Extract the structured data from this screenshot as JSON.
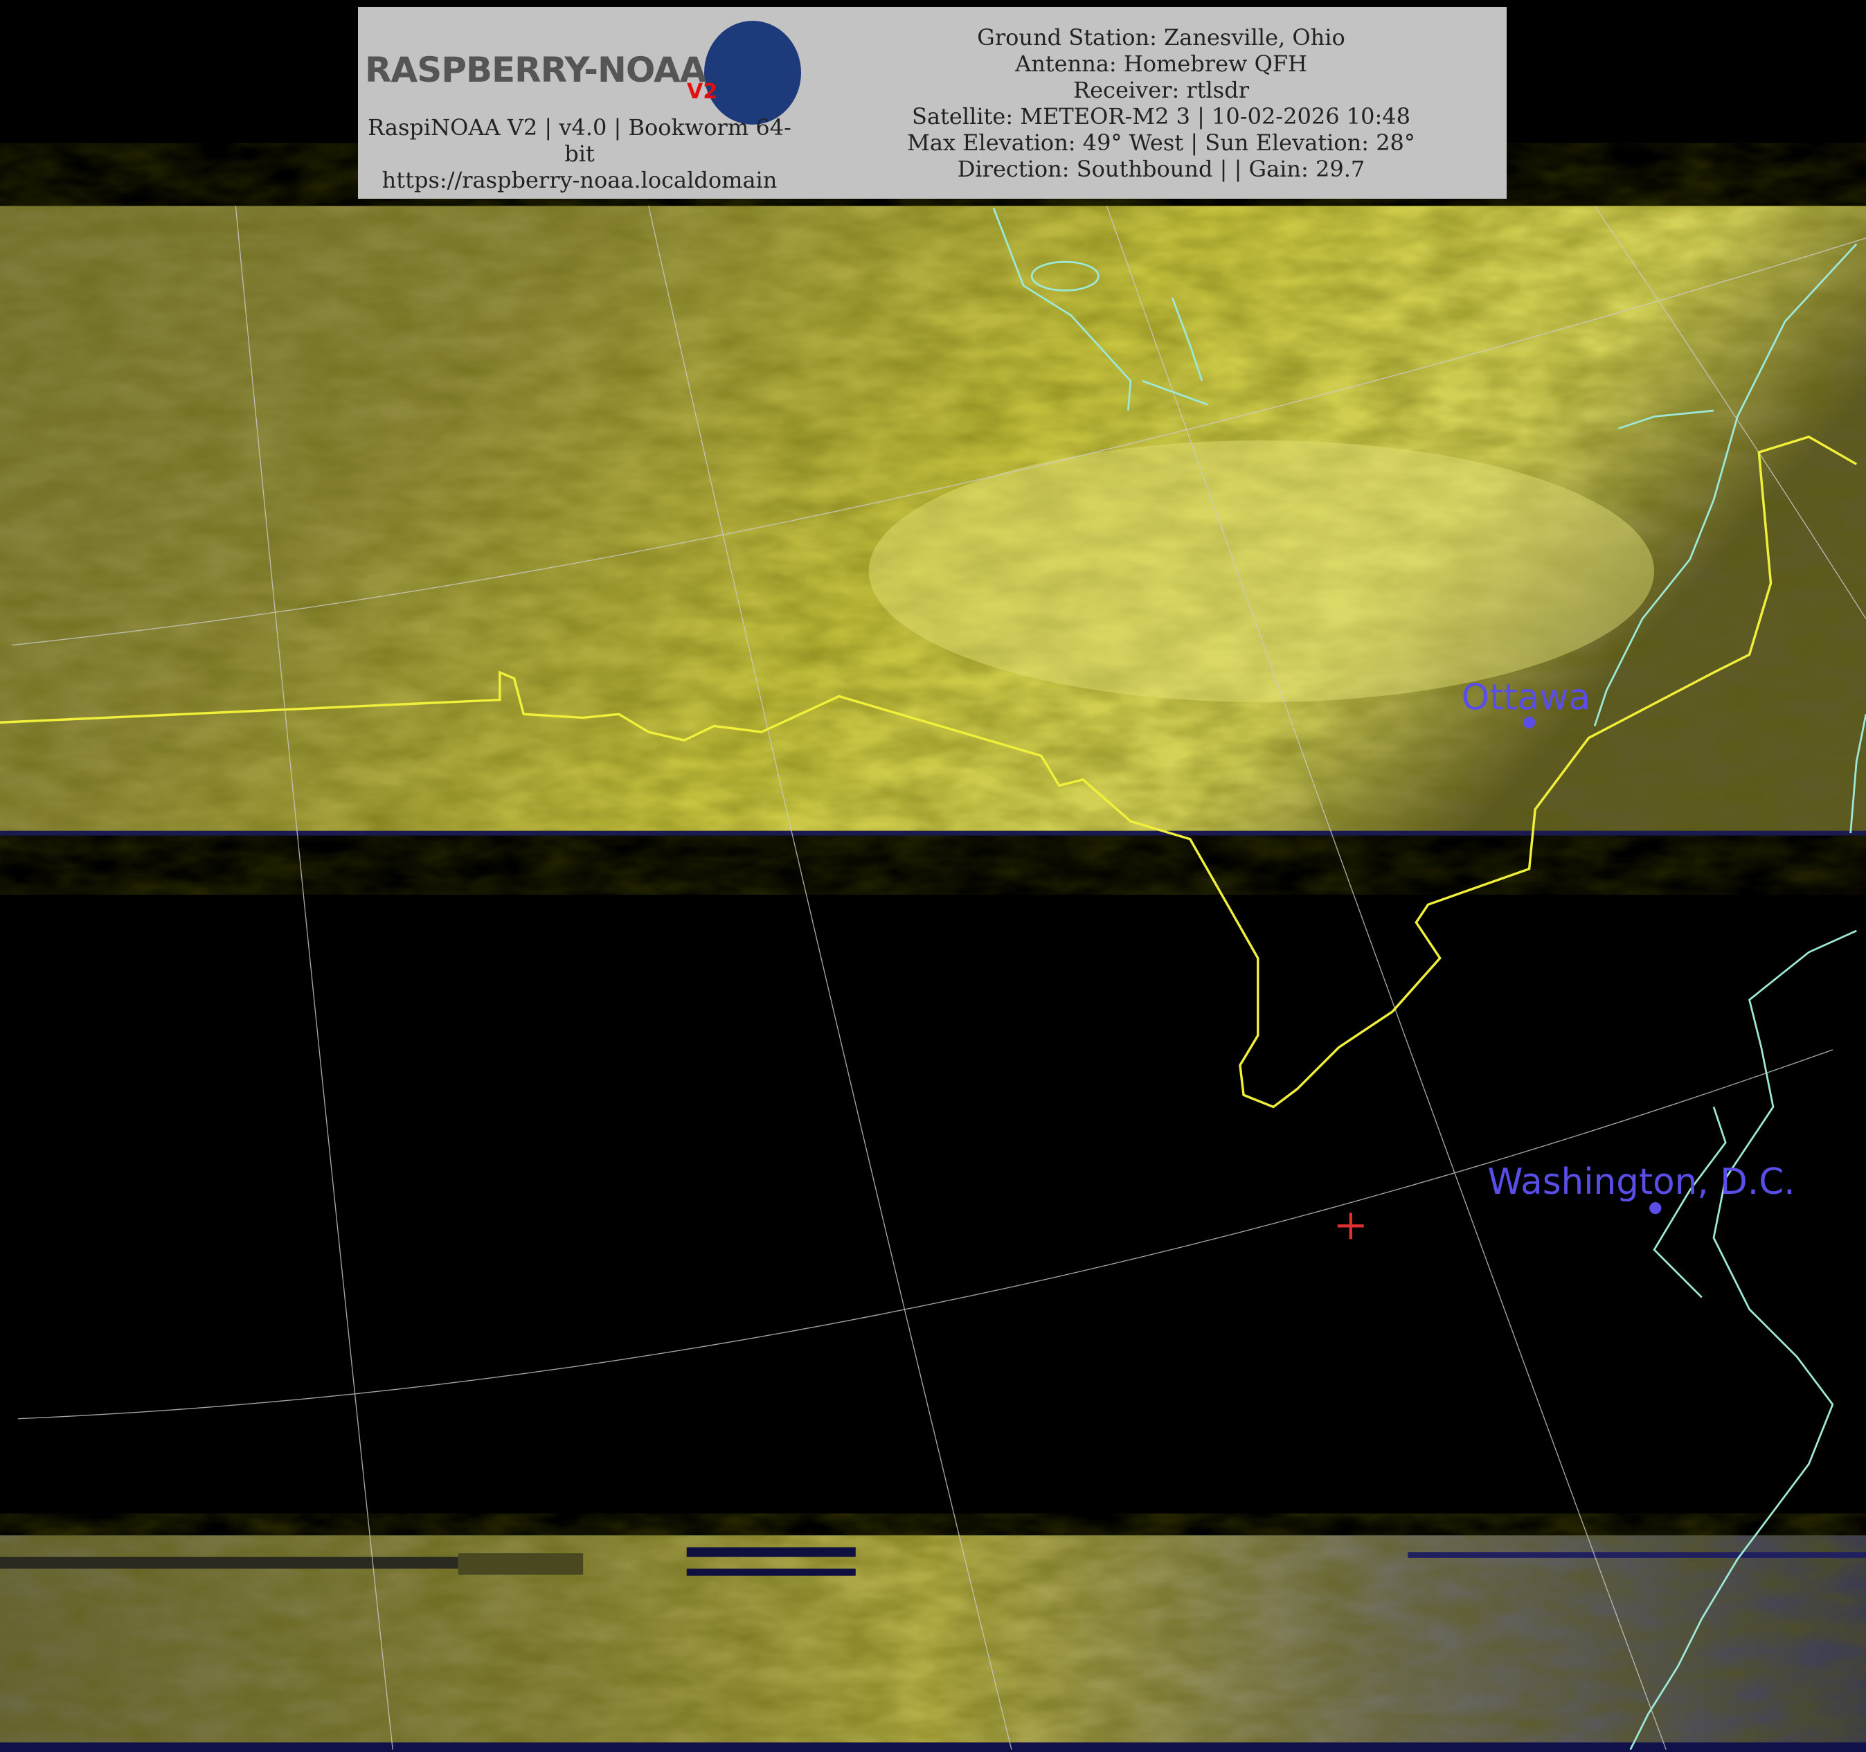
{
  "header": {
    "logo": {
      "text": "RASPBERRY-NOAA",
      "badge": "V2"
    },
    "left_lines": [
      "RaspiNOAA V2 | v4.0 | Bookworm 64-bit",
      "https://raspberry-noaa.localdomain"
    ],
    "right_lines": [
      "Ground Station: Zanesville, Ohio",
      "Antenna: Homebrew QFH",
      "Receiver: rtlsdr",
      "Satellite: METEOR-M2 3 | 10-02-2026 10:48",
      "Max Elevation: 49° West | Sun Elevation: 28°",
      "Direction: Southbound | | Gain: 29.7"
    ]
  },
  "map": {
    "cities": [
      {
        "name": "Ottawa"
      },
      {
        "name": "Washington, D.C."
      }
    ],
    "colors": {
      "border": "#f0f03a",
      "coast": "#9ee8d8",
      "city": "#5a4ee8",
      "ground_station_marker": "#e03030",
      "graticule": "#cccccc"
    }
  }
}
